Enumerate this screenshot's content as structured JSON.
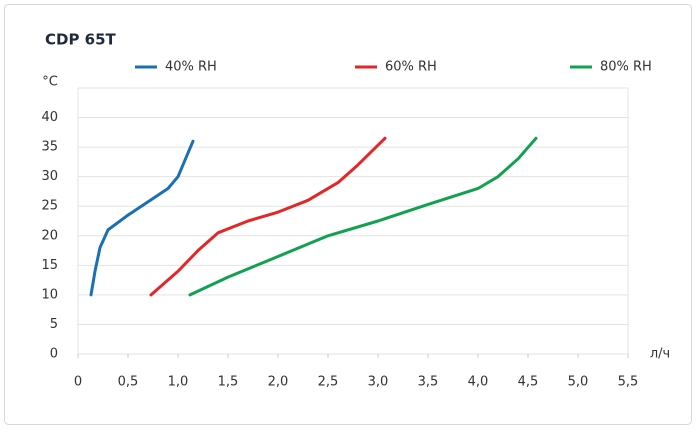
{
  "chart_data": {
    "type": "line",
    "title": "CDP 65T",
    "y_label": "°C",
    "x_label": "л/ч",
    "xlim": [
      0,
      5.5
    ],
    "xticks": [
      0,
      {
        "value": 0.5,
        "label": "0,5"
      },
      {
        "value": 1.0,
        "label": "1,0"
      },
      {
        "value": 1.5,
        "label": "1,5"
      },
      {
        "value": 2.0,
        "label": "2,0"
      },
      {
        "value": 2.5,
        "label": "2,5"
      },
      {
        "value": 3.0,
        "label": "3,0"
      },
      {
        "value": 3.5,
        "label": "3,5"
      },
      {
        "value": 4.0,
        "label": "4,0"
      },
      {
        "value": 4.5,
        "label": "4,5"
      },
      {
        "value": 5.0,
        "label": "5,0"
      },
      {
        "value": 5.5,
        "label": "5,5"
      }
    ],
    "ylim": [
      0,
      45
    ],
    "yticks": [
      0,
      5,
      10,
      15,
      20,
      25,
      30,
      35,
      40
    ],
    "grid": true,
    "series": [
      {
        "name": "40% RH",
        "color": "#1a6fb5",
        "x": [
          0.13,
          0.17,
          0.22,
          0.3,
          0.5,
          0.9,
          1.0,
          1.15
        ],
        "values": [
          10,
          14,
          18,
          21,
          23.5,
          28,
          30,
          36
        ]
      },
      {
        "name": "60% RH",
        "color": "#e32626",
        "x": [
          0.73,
          1.0,
          1.2,
          1.4,
          1.7,
          2.0,
          2.3,
          2.6,
          2.8,
          3.07
        ],
        "values": [
          10,
          14,
          17.5,
          20.5,
          22.5,
          24,
          26,
          29,
          32,
          36.5
        ]
      },
      {
        "name": "80% RH",
        "color": "#12a150",
        "x": [
          1.12,
          1.5,
          2.0,
          2.5,
          3.0,
          3.5,
          4.0,
          4.2,
          4.4,
          4.58
        ],
        "values": [
          10,
          13,
          16.5,
          20,
          22.5,
          25.3,
          28,
          30,
          33,
          36.5
        ]
      }
    ]
  }
}
